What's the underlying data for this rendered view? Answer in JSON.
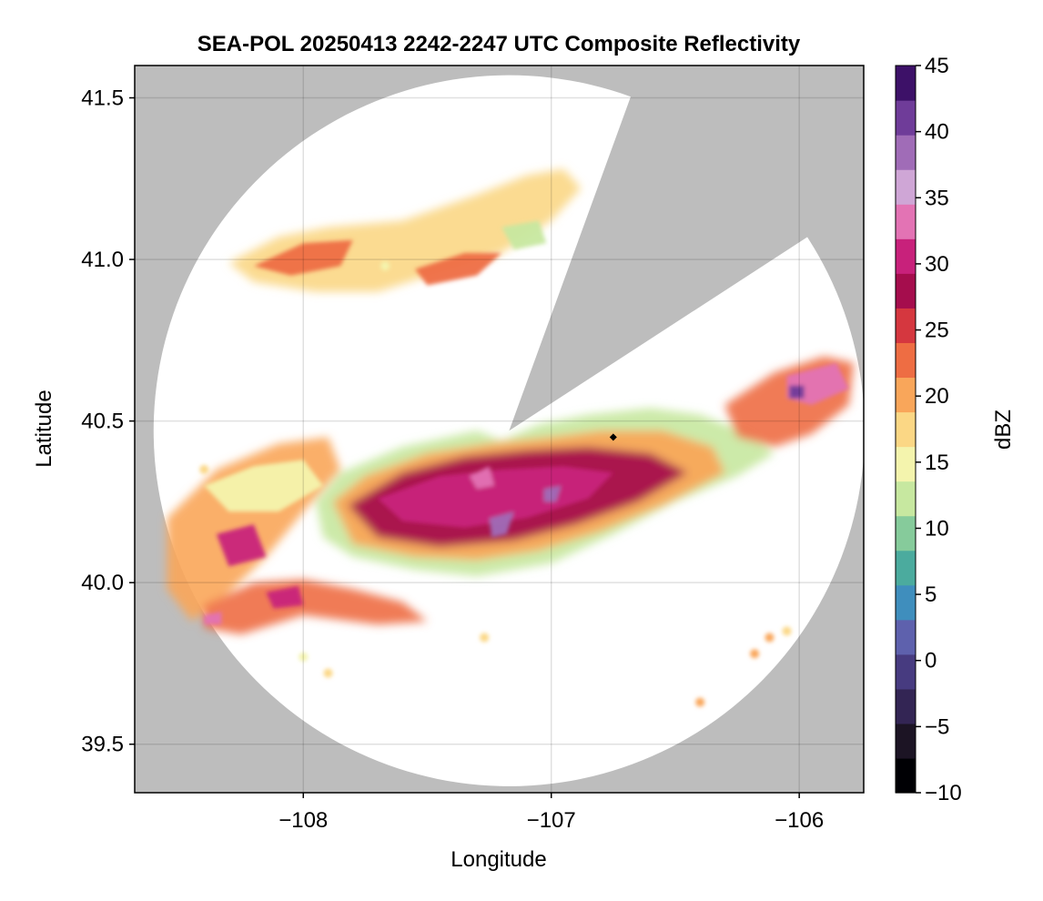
{
  "chart_data": {
    "type": "heatmap",
    "title": "SEA-POL 20250413 2242-2247 UTC Composite Reflectivity",
    "xlabel": "Longitude",
    "ylabel": "Latitude",
    "xlim": [
      -108.68,
      -105.74
    ],
    "ylim": [
      39.35,
      41.6
    ],
    "xticks": [
      -108,
      -107,
      -106
    ],
    "xtick_labels": [
      "−108",
      "−107",
      "−106"
    ],
    "yticks": [
      39.5,
      40.0,
      40.5,
      41.0,
      41.5
    ],
    "ytick_labels": [
      "39.5",
      "40.0",
      "40.5",
      "41.0",
      "41.5"
    ],
    "grid": true,
    "background_color": "#bdbdbd",
    "coverage": {
      "center_lon": -107.17,
      "center_lat": 40.47,
      "radius_deg_lat": 1.1,
      "blocked_sector_bearings_deg": [
        [
          20,
          57
        ]
      ]
    },
    "radar_site": {
      "lon": -106.75,
      "lat": 40.45
    },
    "colorbar": {
      "label": "dBZ",
      "vmin": -10,
      "vmax": 45,
      "ticks": [
        -10,
        -5,
        0,
        5,
        10,
        15,
        20,
        25,
        30,
        35,
        40,
        45
      ],
      "tick_labels": [
        "−10",
        "−5",
        "0",
        "5",
        "10",
        "15",
        "20",
        "25",
        "30",
        "35",
        "40",
        "45"
      ],
      "colormap": "Spectral_r",
      "colors": [
        "#000004",
        "#1c1424",
        "#332554",
        "#473b80",
        "#5e61ad",
        "#3f8ebd",
        "#4bab9e",
        "#86cb9b",
        "#c7e8a0",
        "#f4f4ad",
        "#fbd785",
        "#f9a65a",
        "#ee6d43",
        "#d5373f",
        "#a50d4d",
        "#c8217b",
        "#e373b4",
        "#cfa6d6",
        "#a06cb7",
        "#6f3c99",
        "#3d1168"
      ]
    },
    "features": [
      {
        "name": "main band",
        "lon": [
          -107.9,
          -106.2
        ],
        "lat": [
          40.05,
          40.5
        ],
        "dbz": [
          10,
          38
        ]
      },
      {
        "name": "northern band",
        "lon": [
          -108.3,
          -106.9
        ],
        "lat": [
          40.88,
          41.3
        ],
        "dbz": [
          10,
          25
        ]
      },
      {
        "name": "eastern cell",
        "lon": [
          -106.3,
          -105.8
        ],
        "lat": [
          40.4,
          40.7
        ],
        "dbz": [
          20,
          40
        ]
      },
      {
        "name": "western band",
        "lon": [
          -108.55,
          -107.85
        ],
        "lat": [
          39.85,
          40.45
        ],
        "dbz": [
          10,
          32
        ]
      },
      {
        "name": "southern band",
        "lon": [
          -108.4,
          -107.5
        ],
        "lat": [
          39.85,
          40.0
        ],
        "dbz": [
          15,
          32
        ]
      }
    ]
  }
}
